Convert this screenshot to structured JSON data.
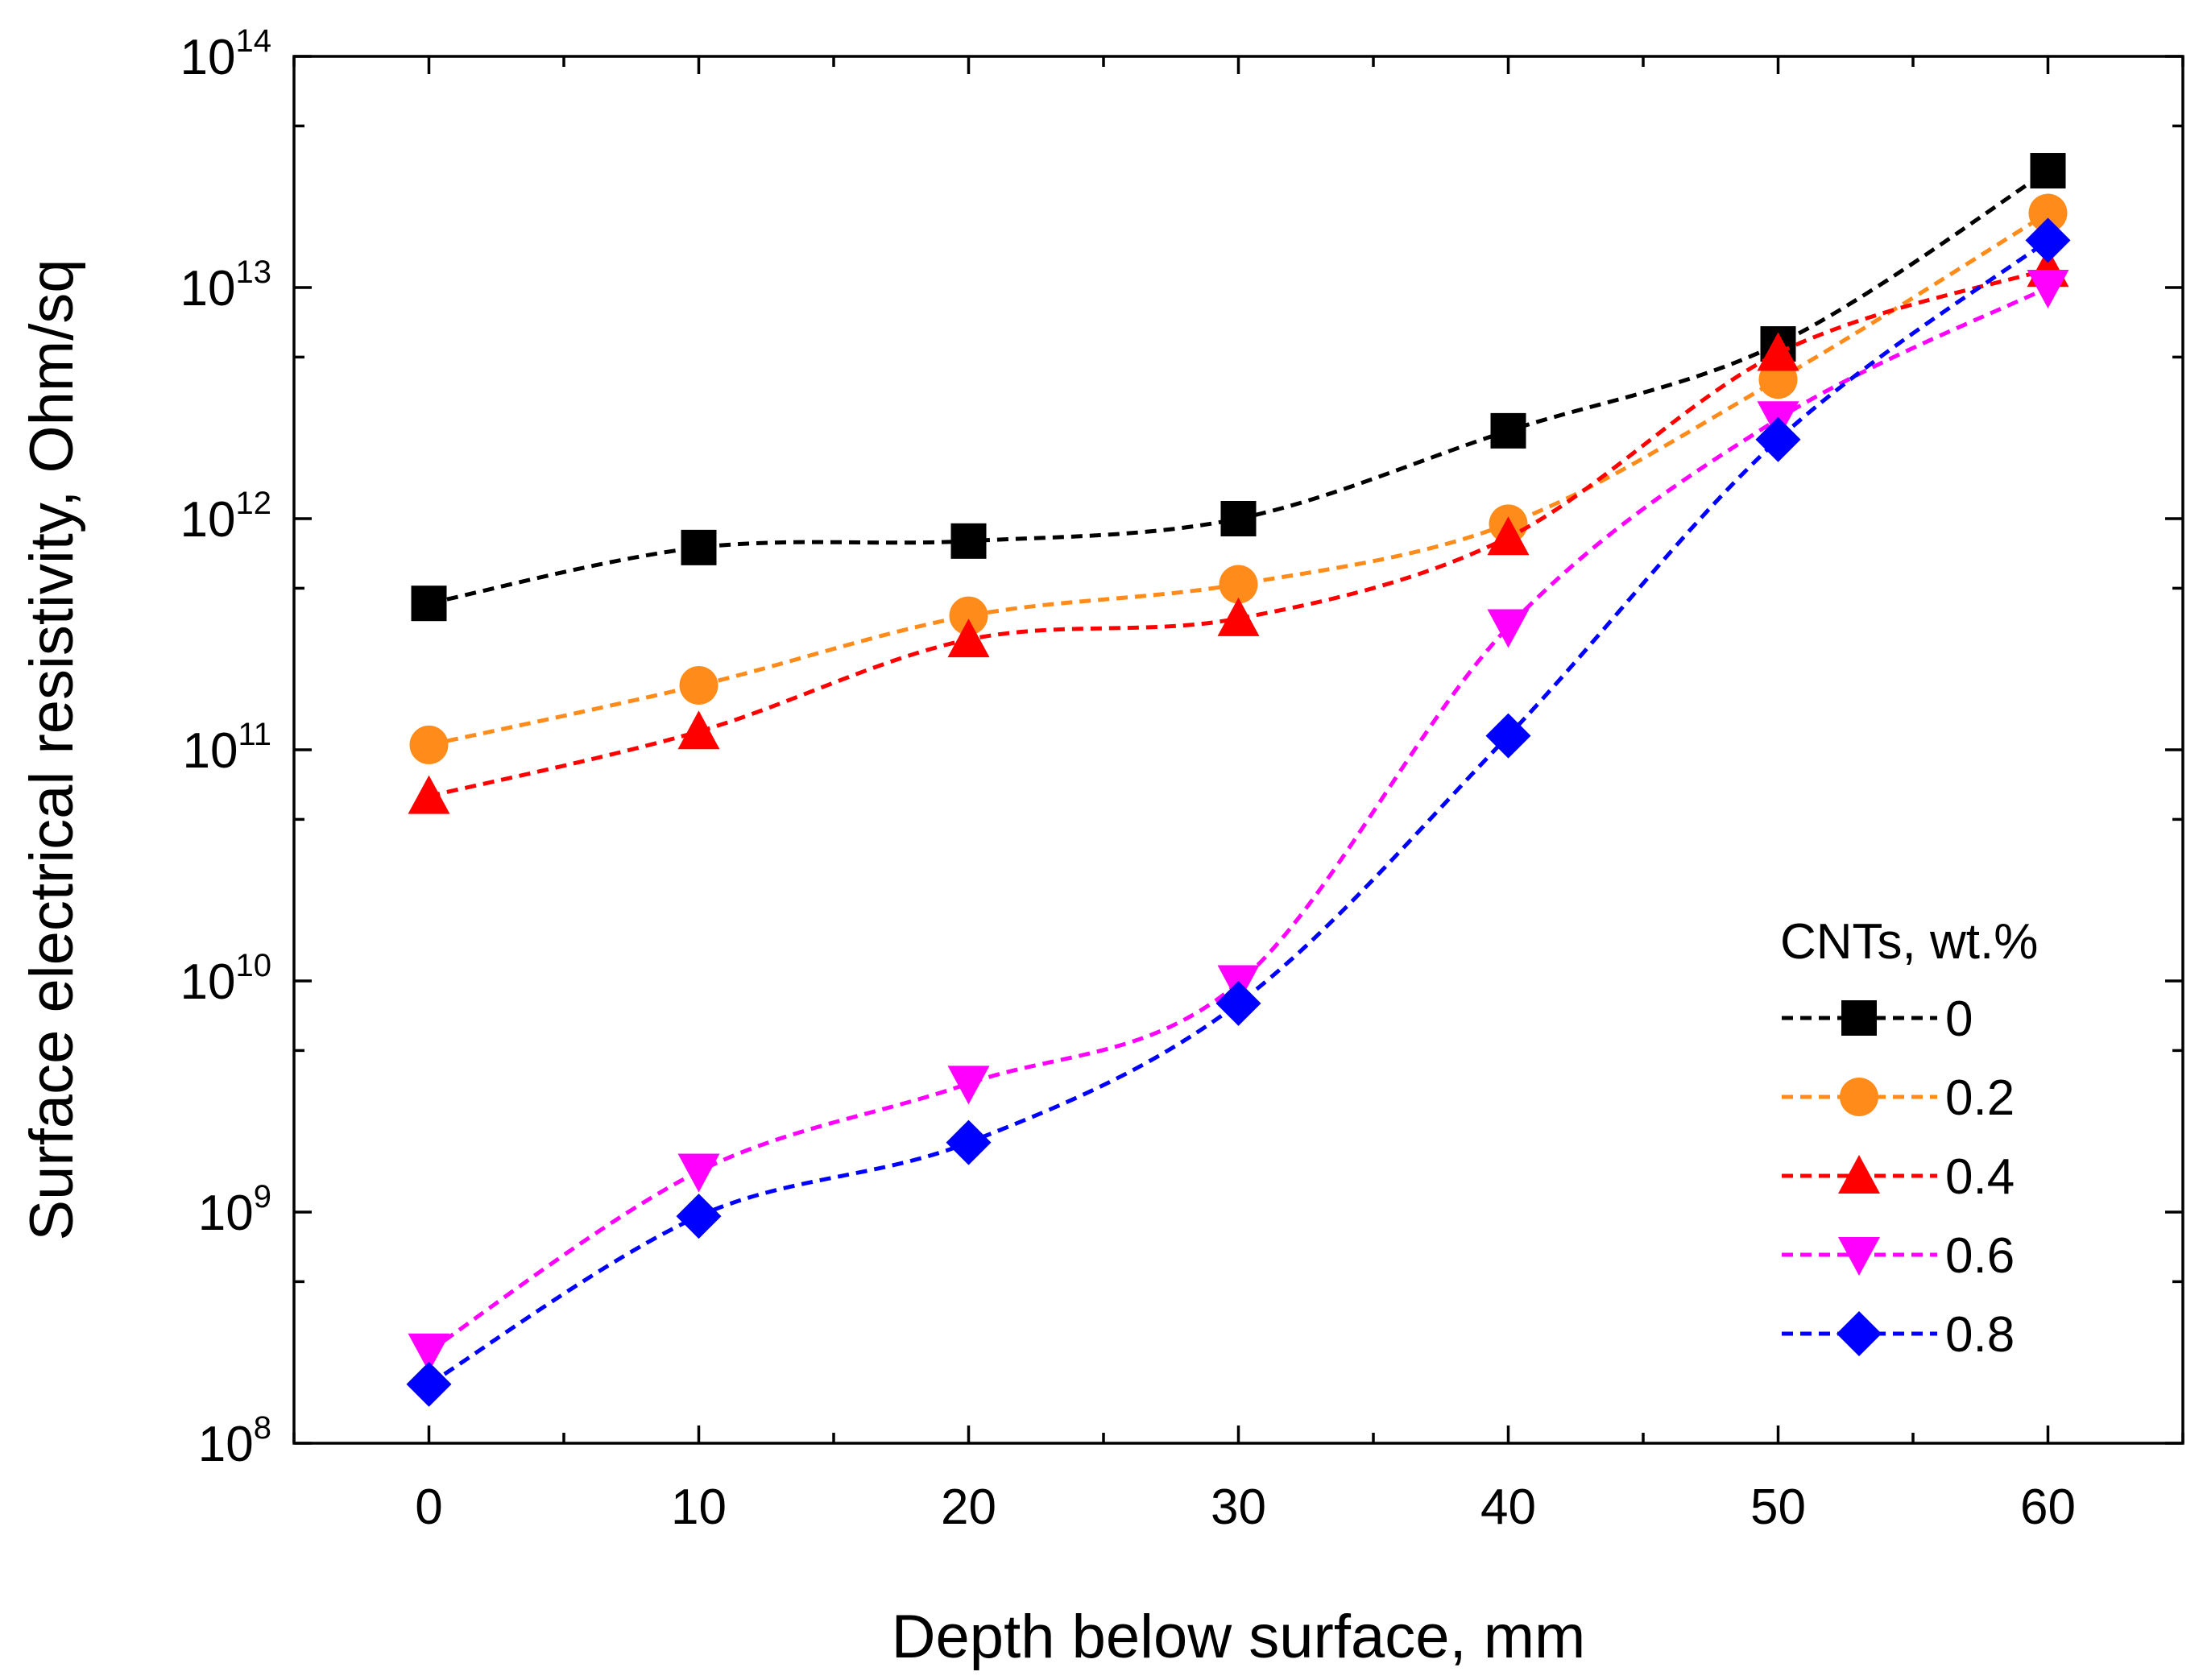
{
  "chart_data": {
    "type": "line",
    "xlabel": "Depth below surface, mm",
    "ylabel": "Surface electrical resistivity, Ohm/sq",
    "yscale": "log",
    "xlim": [
      -5,
      65
    ],
    "ylim": [
      100000000.0,
      100000000000000.0
    ],
    "x_ticks": [
      0,
      10,
      20,
      30,
      40,
      50,
      60
    ],
    "x_tick_labels": [
      "0",
      "10",
      "20",
      "30",
      "40",
      "50",
      "60"
    ],
    "y_ticks": [
      {
        "value": 100000000.0,
        "base": "10",
        "exp": "8"
      },
      {
        "value": 1000000000.0,
        "base": "10",
        "exp": "9"
      },
      {
        "value": 10000000000.0,
        "base": "10",
        "exp": "10"
      },
      {
        "value": 100000000000.0,
        "base": "10",
        "exp": "11"
      },
      {
        "value": 1000000000000.0,
        "base": "10",
        "exp": "12"
      },
      {
        "value": 10000000000000.0,
        "base": "10",
        "exp": "13"
      },
      {
        "value": 100000000000000.0,
        "base": "10",
        "exp": "14"
      }
    ],
    "x": [
      0,
      10,
      20,
      30,
      40,
      50,
      60
    ],
    "legend_title": "CNTs, wt.%",
    "legend_position": "bottom-right",
    "series": [
      {
        "name": "0",
        "color": "#000000",
        "marker": "square",
        "values": [
          430000000000.0,
          750000000000.0,
          800000000000.0,
          1000000000000.0,
          2400000000000.0,
          5700000000000.0,
          32000000000000.0
        ]
      },
      {
        "name": "0.2",
        "color": "#FF8C1A",
        "marker": "circle",
        "values": [
          105000000000.0,
          190000000000.0,
          380000000000.0,
          520000000000.0,
          950000000000.0,
          4000000000000.0,
          21000000000000.0
        ]
      },
      {
        "name": "0.4",
        "color": "#FF0000",
        "marker": "triangle-up",
        "values": [
          63000000000.0,
          120000000000.0,
          300000000000.0,
          370000000000.0,
          830000000000.0,
          5200000000000.0,
          12000000000000.0
        ]
      },
      {
        "name": "0.6",
        "color": "#FF00FF",
        "marker": "triangle-down",
        "values": [
          250000000.0,
          1500000000.0,
          3600000000.0,
          9800000000.0,
          340000000000.0,
          2700000000000.0,
          10000000000000.0
        ]
      },
      {
        "name": "0.8",
        "color": "#0000FF",
        "marker": "diamond",
        "values": [
          180000000.0,
          960000000.0,
          2000000000.0,
          8000000000.0,
          115000000000.0,
          2200000000000.0,
          16000000000000.0
        ]
      }
    ]
  }
}
